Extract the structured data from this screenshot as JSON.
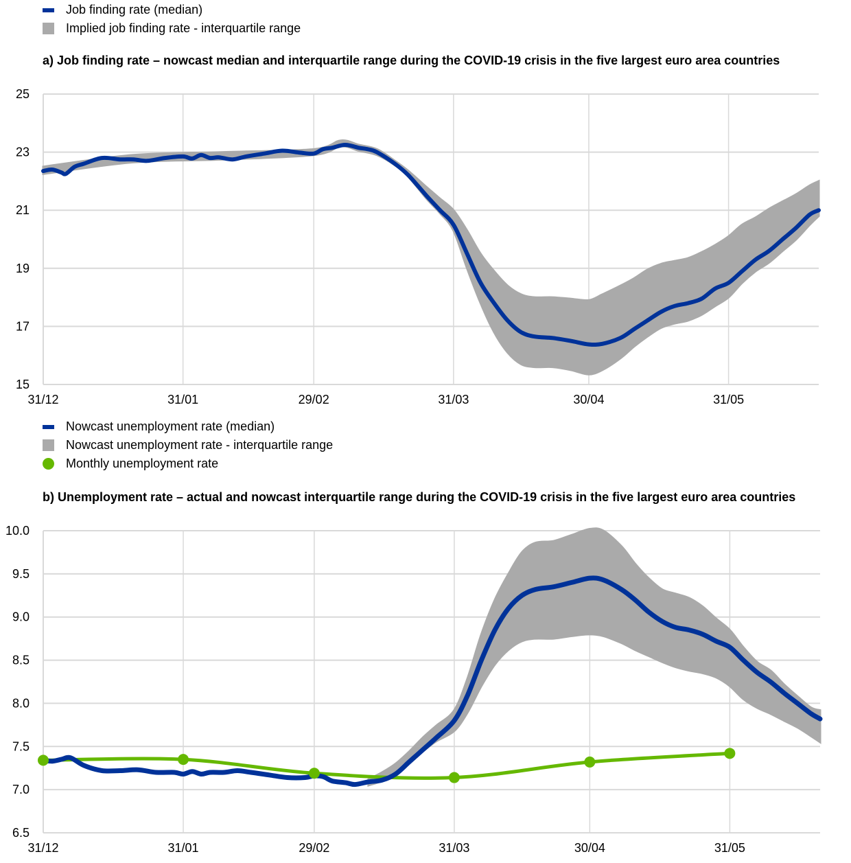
{
  "colors": {
    "median": "#003299",
    "iqr": "#AAAAAA",
    "monthly": "#65B800",
    "grid": "#D9D9D9"
  },
  "chart_data": [
    {
      "type": "area",
      "title": "a) Job finding rate – nowcast median and interquartile range during the COVID-19 crisis in the five largest euro area countries",
      "xlabel": "",
      "ylabel": "",
      "ylim": [
        15,
        25
      ],
      "yticks": [
        "25",
        "23",
        "21",
        "19",
        "17",
        "15"
      ],
      "ytick_values": [
        25,
        23,
        21,
        19,
        17,
        15
      ],
      "xlim_days": [
        0,
        172
      ],
      "xticks": [
        {
          "label": "31/12",
          "day": 0
        },
        {
          "label": "31/01",
          "day": 31
        },
        {
          "label": "29/02",
          "day": 60
        },
        {
          "label": "31/03",
          "day": 91
        },
        {
          "label": "30/04",
          "day": 121
        },
        {
          "label": "31/05",
          "day": 152
        }
      ],
      "grid": true,
      "legend": [
        {
          "label": "Job finding rate (median)",
          "kind": "line",
          "color_key": "median"
        },
        {
          "label": "Implied job finding rate - interquartile range",
          "kind": "box",
          "color_key": "iqr"
        }
      ],
      "legend_position": "top-left",
      "series": [
        {
          "name": "Job finding rate (median)",
          "x": [
            0,
            2,
            4,
            5,
            7,
            9,
            13,
            17,
            20,
            23,
            27,
            31,
            33,
            35,
            37,
            39,
            42,
            45,
            49,
            53,
            57,
            60,
            62,
            64,
            67,
            70,
            72,
            74,
            78,
            81,
            85,
            88,
            91,
            94,
            97,
            100,
            103,
            106,
            109,
            113,
            117,
            121,
            124,
            128,
            131,
            134,
            137,
            140,
            143,
            146,
            149,
            152,
            155,
            158,
            161,
            164,
            167,
            170,
            172
          ],
          "y": [
            22.35,
            22.4,
            22.3,
            22.25,
            22.5,
            22.6,
            22.8,
            22.75,
            22.75,
            22.7,
            22.8,
            22.85,
            22.78,
            22.9,
            22.8,
            22.82,
            22.75,
            22.85,
            22.95,
            23.05,
            22.98,
            22.95,
            23.1,
            23.15,
            23.25,
            23.15,
            23.1,
            23.0,
            22.6,
            22.2,
            21.5,
            21.0,
            20.5,
            19.5,
            18.5,
            17.8,
            17.2,
            16.8,
            16.65,
            16.6,
            16.5,
            16.38,
            16.4,
            16.6,
            16.9,
            17.2,
            17.5,
            17.7,
            17.8,
            17.95,
            18.3,
            18.5,
            18.9,
            19.3,
            19.6,
            20.0,
            20.4,
            20.85,
            21.0
          ]
        },
        {
          "name": "Implied job finding rate - interquartile range (lower)",
          "x": [
            0,
            20,
            40,
            60,
            66,
            70,
            74,
            78,
            81,
            85,
            88,
            91,
            94,
            97,
            100,
            103,
            106,
            109,
            113,
            117,
            121,
            124,
            128,
            131,
            134,
            137,
            140,
            143,
            146,
            149,
            152,
            155,
            158,
            161,
            164,
            167,
            170,
            172
          ],
          "y": [
            22.25,
            22.65,
            22.75,
            22.9,
            23.2,
            23.05,
            22.9,
            22.55,
            22.15,
            21.4,
            20.9,
            20.3,
            19.0,
            17.8,
            16.8,
            16.1,
            15.7,
            15.6,
            15.6,
            15.5,
            15.35,
            15.5,
            15.9,
            16.3,
            16.65,
            16.95,
            17.1,
            17.2,
            17.4,
            17.7,
            18.0,
            18.5,
            18.9,
            19.2,
            19.6,
            20.0,
            20.5,
            20.8
          ]
        },
        {
          "name": "Implied job finding rate - interquartile range (upper)",
          "x": [
            0,
            20,
            40,
            60,
            66,
            70,
            74,
            78,
            81,
            85,
            88,
            91,
            94,
            97,
            100,
            103,
            106,
            109,
            113,
            117,
            121,
            124,
            128,
            131,
            134,
            137,
            140,
            143,
            146,
            149,
            152,
            155,
            158,
            161,
            164,
            167,
            170,
            172
          ],
          "y": [
            22.5,
            22.9,
            23.0,
            23.1,
            23.4,
            23.25,
            23.1,
            22.7,
            22.35,
            21.8,
            21.4,
            21.0,
            20.3,
            19.5,
            18.9,
            18.4,
            18.1,
            18.0,
            18.0,
            17.95,
            17.9,
            18.1,
            18.4,
            18.65,
            18.95,
            19.15,
            19.25,
            19.35,
            19.55,
            19.8,
            20.1,
            20.5,
            20.75,
            21.05,
            21.3,
            21.55,
            21.85,
            22.0
          ]
        }
      ]
    },
    {
      "type": "area",
      "title": "b) Unemployment rate – actual and nowcast interquartile range during the COVID-19 crisis in the five largest euro area countries",
      "xlabel": "",
      "ylabel": "",
      "ylim": [
        6.5,
        10.0
      ],
      "yticks": [
        "10.0",
        "9.5",
        "9.0",
        "8.5",
        "8.0",
        "7.5",
        "7.0",
        "6.5"
      ],
      "ytick_values": [
        10.0,
        9.5,
        9.0,
        8.5,
        8.0,
        7.5,
        7.0,
        6.5
      ],
      "xlim_days": [
        0,
        172
      ],
      "xticks": [
        {
          "label": "31/12",
          "day": 0
        },
        {
          "label": "31/01",
          "day": 31
        },
        {
          "label": "29/02",
          "day": 60
        },
        {
          "label": "31/03",
          "day": 91
        },
        {
          "label": "30/04",
          "day": 121
        },
        {
          "label": "31/05",
          "day": 152
        }
      ],
      "grid": true,
      "legend": [
        {
          "label": "Nowcast unemployment rate (median)",
          "kind": "line",
          "color_key": "median"
        },
        {
          "label": "Nowcast unemployment rate - interquartile range",
          "kind": "box",
          "color_key": "iqr"
        },
        {
          "label": "Monthly unemployment rate",
          "kind": "dot",
          "color_key": "monthly"
        }
      ],
      "legend_position": "top-left",
      "series": [
        {
          "name": "Nowcast unemployment rate (median)",
          "x": [
            0,
            2,
            4,
            6,
            9,
            13,
            17,
            21,
            25,
            29,
            31,
            33,
            35,
            37,
            40,
            43,
            46,
            50,
            54,
            58,
            60,
            62,
            64,
            67,
            69,
            72,
            75,
            78,
            81,
            84,
            87,
            91,
            94,
            97,
            100,
            103,
            106,
            109,
            113,
            117,
            121,
            124,
            128,
            131,
            134,
            137,
            140,
            143,
            146,
            149,
            152,
            155,
            158,
            161,
            164,
            167,
            170,
            172
          ],
          "y": [
            7.34,
            7.33,
            7.35,
            7.37,
            7.28,
            7.22,
            7.22,
            7.23,
            7.2,
            7.2,
            7.18,
            7.21,
            7.18,
            7.2,
            7.2,
            7.22,
            7.2,
            7.17,
            7.14,
            7.14,
            7.16,
            7.15,
            7.1,
            7.08,
            7.06,
            7.09,
            7.11,
            7.18,
            7.32,
            7.46,
            7.6,
            7.8,
            8.1,
            8.5,
            8.85,
            9.1,
            9.25,
            9.32,
            9.35,
            9.4,
            9.45,
            9.43,
            9.32,
            9.2,
            9.06,
            8.95,
            8.88,
            8.85,
            8.8,
            8.72,
            8.65,
            8.5,
            8.36,
            8.25,
            8.12,
            8.0,
            7.88,
            7.82
          ]
        },
        {
          "name": "Nowcast unemployment rate - interquartile range (lower)",
          "x": [
            72,
            75,
            78,
            81,
            84,
            87,
            91,
            94,
            97,
            100,
            103,
            106,
            109,
            113,
            117,
            121,
            124,
            128,
            131,
            134,
            137,
            140,
            143,
            146,
            149,
            152,
            155,
            158,
            161,
            164,
            167,
            170,
            172
          ],
          "y": [
            7.05,
            7.1,
            7.18,
            7.3,
            7.44,
            7.56,
            7.68,
            7.9,
            8.2,
            8.45,
            8.62,
            8.72,
            8.75,
            8.75,
            8.78,
            8.8,
            8.78,
            8.7,
            8.62,
            8.55,
            8.48,
            8.42,
            8.38,
            8.35,
            8.3,
            8.2,
            8.05,
            7.95,
            7.88,
            7.8,
            7.72,
            7.62,
            7.55
          ]
        },
        {
          "name": "Nowcast unemployment rate - interquartile range (upper)",
          "x": [
            72,
            75,
            78,
            81,
            84,
            87,
            91,
            94,
            97,
            100,
            103,
            106,
            109,
            113,
            117,
            121,
            124,
            128,
            131,
            134,
            137,
            140,
            143,
            146,
            149,
            152,
            155,
            158,
            161,
            164,
            167,
            170,
            172
          ],
          "y": [
            7.12,
            7.2,
            7.3,
            7.44,
            7.6,
            7.74,
            7.92,
            8.3,
            8.8,
            9.2,
            9.5,
            9.75,
            9.86,
            9.88,
            9.95,
            10.02,
            10.0,
            9.82,
            9.62,
            9.45,
            9.32,
            9.27,
            9.22,
            9.12,
            8.98,
            8.85,
            8.65,
            8.48,
            8.38,
            8.22,
            8.08,
            7.95,
            7.92
          ]
        },
        {
          "name": "Monthly unemployment rate",
          "x": [
            0,
            31,
            60,
            91,
            121,
            152
          ],
          "y": [
            7.34,
            7.35,
            7.19,
            7.14,
            7.32,
            7.42
          ]
        }
      ]
    }
  ]
}
